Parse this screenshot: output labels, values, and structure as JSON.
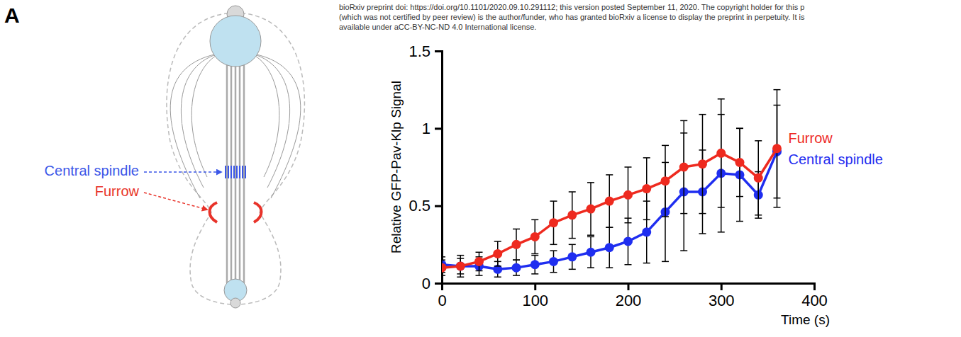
{
  "panel_label": "A",
  "header": {
    "lines": [
      "bioRxiv preprint doi: https://doi.org/10.1101/2020.09.10.291112; this version posted September 11, 2020. The copyright holder for this p",
      "(which was not certified by peer review) is the author/funder, who has granted bioRxiv a license to display the preprint in perpetuity. It is",
      "available under aCC-BY-NC-ND 4.0 International license."
    ]
  },
  "diagram": {
    "labels": [
      {
        "text": "Central spindle",
        "color": "#3b57e8"
      },
      {
        "text": "Furrow",
        "color": "#e8332a"
      }
    ]
  },
  "chart_data": {
    "type": "line",
    "y_label": "Relative GFP-Pav-Klp Signal",
    "x_label": "Time (s)",
    "x": [
      0,
      20,
      40,
      60,
      80,
      100,
      120,
      140,
      160,
      180,
      200,
      220,
      240,
      260,
      280,
      300,
      320,
      340,
      360
    ],
    "xlim": [
      0,
      400
    ],
    "xticks": [
      0,
      100,
      200,
      300,
      400
    ],
    "ylim": [
      0,
      1.5
    ],
    "yticks": [
      0,
      0.5,
      1,
      1.5
    ],
    "legend": "right",
    "marker": "circle",
    "series": [
      {
        "name": "Furrow",
        "color": "#ee2a1f",
        "values": [
          0.1,
          0.11,
          0.14,
          0.19,
          0.25,
          0.3,
          0.39,
          0.44,
          0.48,
          0.53,
          0.57,
          0.61,
          0.66,
          0.75,
          0.77,
          0.84,
          0.78,
          0.68,
          0.87
        ],
        "errors": [
          0.05,
          0.05,
          0.06,
          0.08,
          0.1,
          0.11,
          0.14,
          0.15,
          0.17,
          0.17,
          0.18,
          0.2,
          0.23,
          0.3,
          0.32,
          0.35,
          0.22,
          0.24,
          0.38
        ]
      },
      {
        "name": "Central spindle",
        "color": "#1f2ef0",
        "values": [
          0.12,
          0.11,
          0.11,
          0.09,
          0.1,
          0.12,
          0.14,
          0.17,
          0.2,
          0.23,
          0.27,
          0.33,
          0.46,
          0.59,
          0.59,
          0.71,
          0.7,
          0.57,
          0.85
        ],
        "errors": [
          0.05,
          0.07,
          0.06,
          0.05,
          0.05,
          0.06,
          0.07,
          0.08,
          0.1,
          0.13,
          0.15,
          0.2,
          0.32,
          0.38,
          0.27,
          0.38,
          0.3,
          0.15,
          0.3
        ]
      }
    ]
  }
}
